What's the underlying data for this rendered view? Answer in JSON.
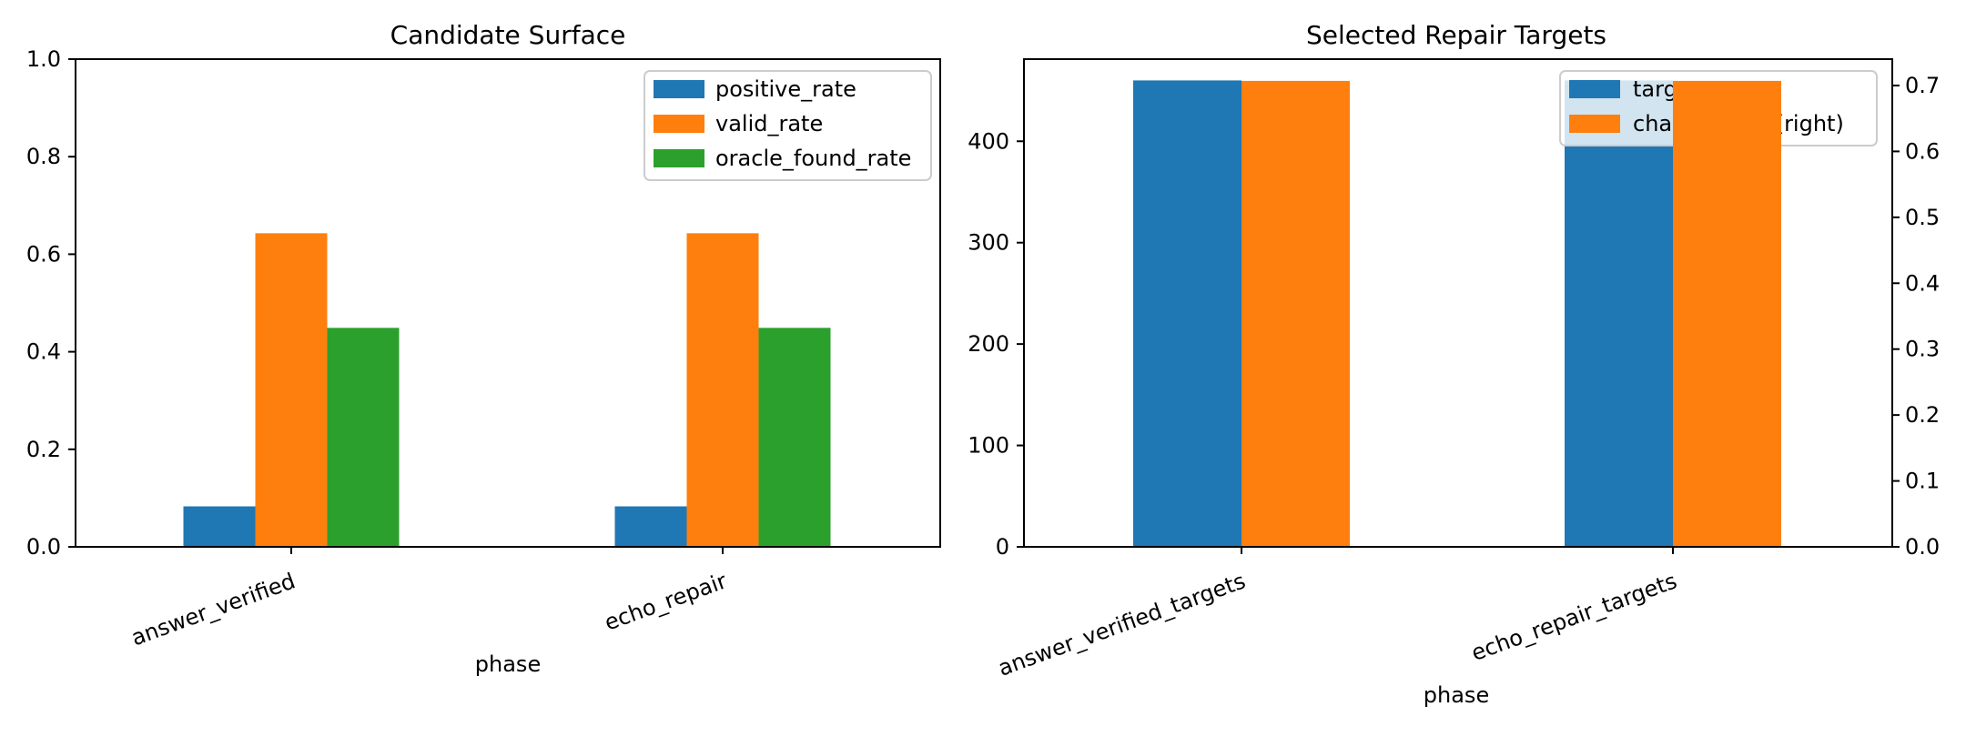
{
  "chart_data": [
    {
      "type": "bar",
      "title": "Candidate Surface",
      "xlabel": "phase",
      "ylabel": "",
      "categories": [
        "answer_verified",
        "echo_repair"
      ],
      "ylim": [
        0,
        1.0
      ],
      "yticks": [
        "0.0",
        "0.2",
        "0.4",
        "0.6",
        "0.8",
        "1.0"
      ],
      "series": [
        {
          "name": "positive_rate",
          "values": [
            0.083,
            0.083
          ],
          "color": "#1f77b4"
        },
        {
          "name": "valid_rate",
          "values": [
            0.643,
            0.643
          ],
          "color": "#ff7f0e"
        },
        {
          "name": "oracle_found_rate",
          "values": [
            0.449,
            0.449
          ],
          "color": "#2ca02c"
        }
      ],
      "legend": "top-right",
      "grid": false
    },
    {
      "type": "bar",
      "title": "Selected Repair Targets",
      "xlabel": "phase",
      "ylabel": "",
      "categories": [
        "answer_verified_targets",
        "echo_repair_targets"
      ],
      "ylim": [
        0,
        481
      ],
      "yticks": [
        "0",
        "100",
        "200",
        "300",
        "400"
      ],
      "y2lim": [
        0,
        0.74
      ],
      "y2ticks": [
        "0.0",
        "0.1",
        "0.2",
        "0.3",
        "0.4",
        "0.5",
        "0.6",
        "0.7"
      ],
      "series": [
        {
          "name": "targets",
          "axis": "left",
          "values": [
            460,
            460
          ],
          "color": "#1f77b4"
        },
        {
          "name": "change_rate (right)",
          "axis": "right",
          "values": [
            0.707,
            0.707
          ],
          "color": "#ff7f0e"
        }
      ],
      "legend": "top-right",
      "grid": false
    }
  ]
}
